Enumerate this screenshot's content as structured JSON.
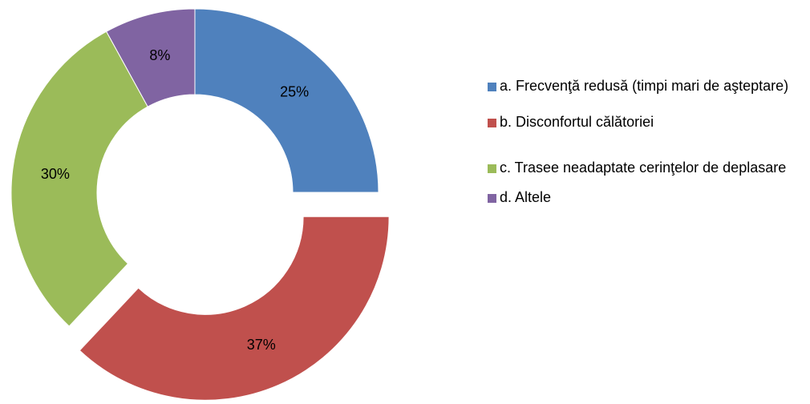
{
  "chart_data": {
    "type": "donut",
    "categories": [
      "a. Frecvenţă redusă (timpi mari de aşteptare)",
      "b. Disconfortul călătoriei",
      "c. Trasee neadaptate cerinţelor de deplasare",
      "d. Altele"
    ],
    "values": [
      25,
      37,
      30,
      8
    ],
    "value_labels": [
      "25%",
      "37%",
      "30%",
      "8%"
    ],
    "colors": [
      "#4f81bd",
      "#c0504d",
      "#9bbb59",
      "#8064a2"
    ],
    "explode": [
      false,
      true,
      false,
      false
    ],
    "legend": "right"
  }
}
